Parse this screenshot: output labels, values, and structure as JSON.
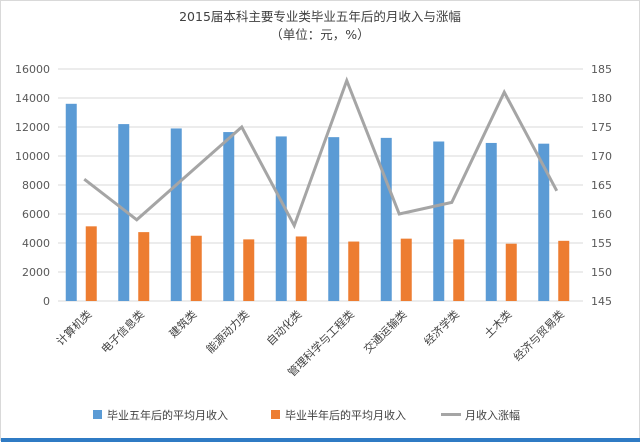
{
  "chart_data": {
    "type": "bar",
    "title": "2015届本科主要专业类毕业五年后的月收入与涨幅",
    "subtitle": "（单位：元，%）",
    "categories": [
      "计算机类",
      "电子信息类",
      "建筑类",
      "能源动力类",
      "自动化类",
      "管理科学与工程类",
      "交通运输类",
      "经济学类",
      "土木类",
      "经济与贸易类"
    ],
    "series": [
      {
        "name": "毕业五年后的平均月收入",
        "type": "bar",
        "axis": "left",
        "color": "#5b9bd5",
        "values": [
          13600,
          12200,
          11900,
          11650,
          11350,
          11300,
          11250,
          11000,
          10900,
          10850
        ]
      },
      {
        "name": "毕业半年后的平均月收入",
        "type": "bar",
        "axis": "left",
        "color": "#ed7d31",
        "values": [
          5150,
          4750,
          4500,
          4250,
          4450,
          4100,
          4300,
          4250,
          3950,
          4150
        ]
      },
      {
        "name": "月收入涨幅",
        "type": "line",
        "axis": "right",
        "color": "#a5a5a5",
        "values": [
          166,
          159,
          167,
          175,
          158,
          183,
          160,
          162,
          181,
          164
        ]
      }
    ],
    "ylim_left": [
      0,
      16000
    ],
    "yticks_left": [
      0,
      2000,
      4000,
      6000,
      8000,
      10000,
      12000,
      14000,
      16000
    ],
    "ylim_right": [
      145,
      185
    ],
    "yticks_right": [
      145,
      150,
      155,
      160,
      165,
      170,
      175,
      180,
      185
    ],
    "grid": true,
    "legend_position": "bottom"
  }
}
